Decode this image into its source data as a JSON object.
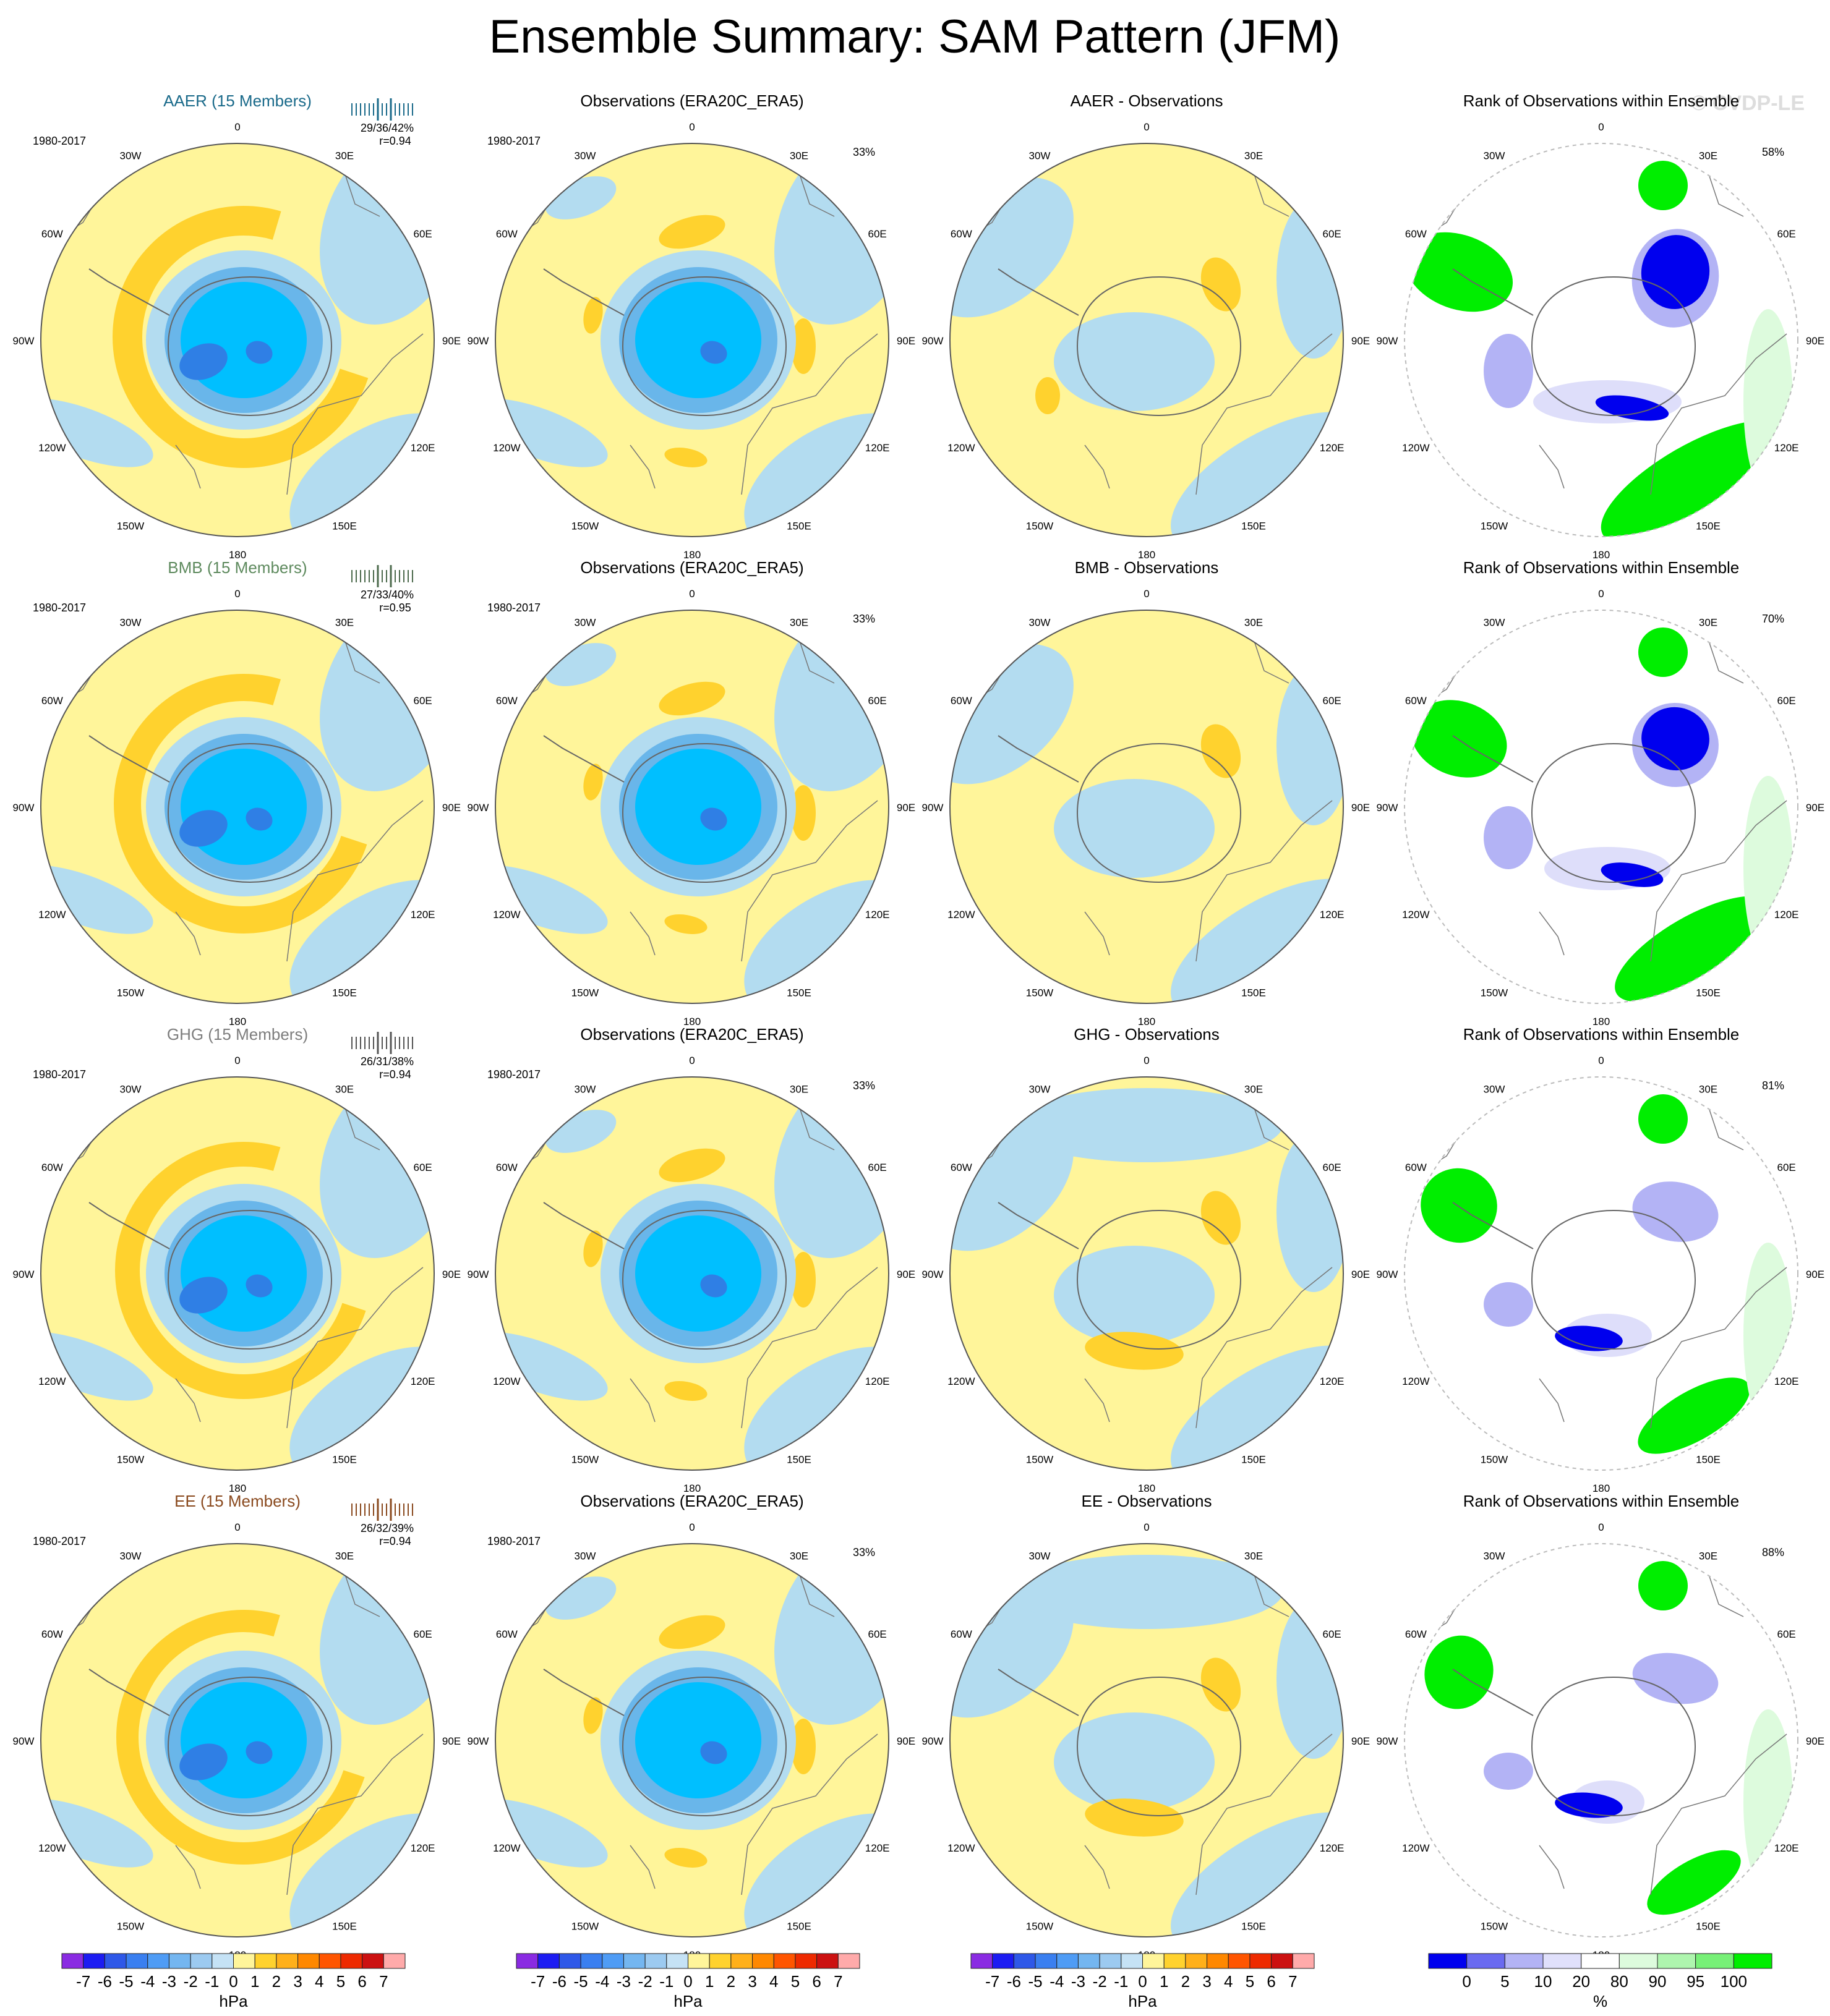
{
  "title": "Ensemble Summary: SAM Pattern (JFM)",
  "watermark": "© CVDP-LE",
  "lon_labels": [
    "0",
    "30E",
    "60E",
    "90E",
    "120E",
    "150E",
    "180",
    "150W",
    "120W",
    "90W",
    "60W",
    "30W"
  ],
  "colors": {
    "ocean_light_blue": "#b3dcf0",
    "pale_yellow": "#fff59a",
    "orange": "#ffd22e",
    "blue_mid": "#69b6ea",
    "blue_strong": "#3aa5f0",
    "blue_core": "#00bfff",
    "blue_dark": "#2f7fe5",
    "rank_blue": "#0000ee",
    "rank_lavender": "#b3b3f5",
    "rank_pale_lavender": "#dedefa",
    "rank_pale_green": "#ddfbdd",
    "rank_green": "#00ee00"
  },
  "rows": [
    {
      "ensemble": {
        "title": "AAER (15 Members)",
        "title_color": "#1a6a8a",
        "period": "1980-2017",
        "stats": "29/36/42%",
        "corr": "r=0.94",
        "tick_color": "#1a6a8a"
      },
      "obs": {
        "title": "Observations (ERA20C_ERA5)",
        "period": "1980-2017",
        "pct": "33%"
      },
      "diff": {
        "title": "AAER - Observations"
      },
      "rank": {
        "title": "Rank of Observations within Ensemble",
        "pct": "58%"
      }
    },
    {
      "ensemble": {
        "title": "BMB (15 Members)",
        "title_color": "#5e8a5e",
        "period": "1980-2017",
        "stats": "27/33/40%",
        "corr": "r=0.95",
        "tick_color": "#4d6b4d"
      },
      "obs": {
        "title": "Observations (ERA20C_ERA5)",
        "period": "1980-2017",
        "pct": "33%"
      },
      "diff": {
        "title": "BMB - Observations"
      },
      "rank": {
        "title": "Rank of Observations within Ensemble",
        "pct": "70%"
      }
    },
    {
      "ensemble": {
        "title": "GHG (15 Members)",
        "title_color": "#7d7d7d",
        "period": "1980-2017",
        "stats": "26/31/38%",
        "corr": "r=0.94",
        "tick_color": "#555555"
      },
      "obs": {
        "title": "Observations (ERA20C_ERA5)",
        "period": "1980-2017",
        "pct": "33%"
      },
      "diff": {
        "title": "GHG - Observations"
      },
      "rank": {
        "title": "Rank of Observations within Ensemble",
        "pct": "81%"
      }
    },
    {
      "ensemble": {
        "title": "EE (15 Members)",
        "title_color": "#8a4a1f",
        "period": "1980-2017",
        "stats": "26/32/39%",
        "corr": "r=0.94",
        "tick_color": "#8a4a1f"
      },
      "obs": {
        "title": "Observations (ERA20C_ERA5)",
        "period": "1980-2017",
        "pct": "33%"
      },
      "diff": {
        "title": "EE - Observations"
      },
      "rank": {
        "title": "Rank of Observations within Ensemble",
        "pct": "88%"
      }
    }
  ],
  "colorbar_hpa": {
    "labels": [
      "-7",
      "-6",
      "-5",
      "-4",
      "-3",
      "-2",
      "-1",
      "0",
      "1",
      "2",
      "3",
      "4",
      "5",
      "6",
      "7"
    ],
    "unit": "hPa",
    "colors": [
      "#8a2be2",
      "#1c1cf2",
      "#2e58e8",
      "#3a7ff0",
      "#4f9cf5",
      "#74b6f0",
      "#9ccaf0",
      "#c5e2f5",
      "#fff59a",
      "#ffd22e",
      "#ffb01a",
      "#ff8800",
      "#ff5500",
      "#ee2a00",
      "#cc1111",
      "#ffaaaa"
    ]
  },
  "colorbar_rank": {
    "labels": [
      "0",
      "5",
      "10",
      "20",
      "80",
      "90",
      "95",
      "100"
    ],
    "unit": "%",
    "colors": [
      "#0000ee",
      "#6a6af0",
      "#b3b3f5",
      "#e0e0fb",
      "#ffffff",
      "#ddfbdd",
      "#aef5ae",
      "#77f077",
      "#00ee00"
    ]
  }
}
